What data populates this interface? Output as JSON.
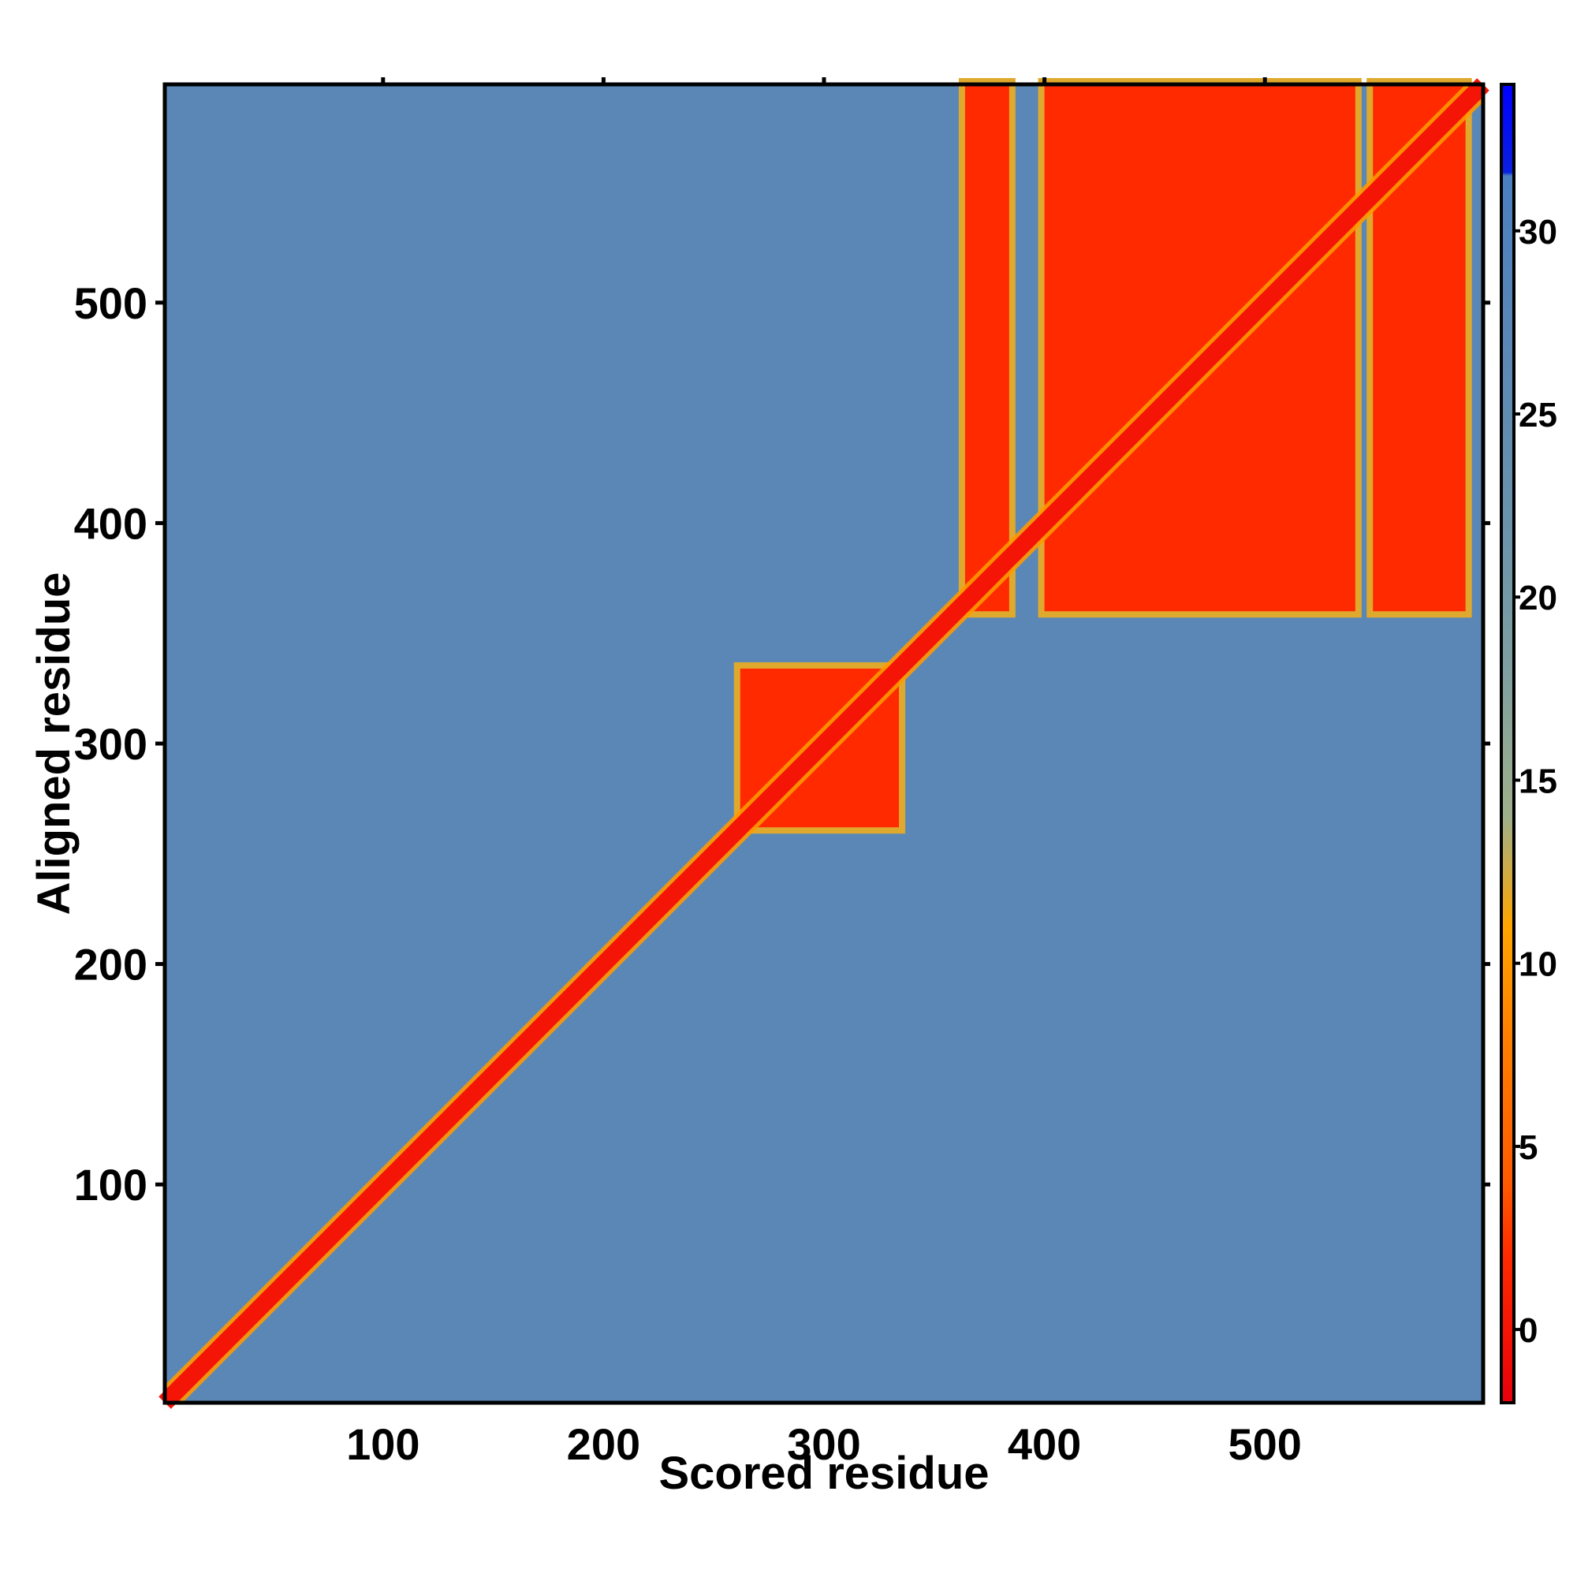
{
  "chart_data": {
    "type": "heatmap",
    "title": "",
    "xlabel": "Scored residue",
    "ylabel": "Aligned residue",
    "xlim": [
      1,
      599
    ],
    "ylim": [
      1,
      599
    ],
    "x_ticks": [
      100,
      200,
      300,
      400,
      500
    ],
    "y_ticks": [
      100,
      200,
      300,
      400,
      500
    ],
    "grid": false,
    "colorbar": {
      "range": [
        -2,
        34
      ],
      "ticks": [
        0,
        5,
        10,
        15,
        20,
        25,
        30
      ],
      "stops": [
        {
          "value": -2,
          "color": "#e8000b"
        },
        {
          "value": 2,
          "color": "#ff2a00"
        },
        {
          "value": 4,
          "color": "#ff5a00"
        },
        {
          "value": 8,
          "color": "#ff7f00"
        },
        {
          "value": 11,
          "color": "#ffa500"
        },
        {
          "value": 14,
          "color": "#9fb08a"
        },
        {
          "value": 18,
          "color": "#7f9fa0"
        },
        {
          "value": 22,
          "color": "#6a93ab"
        },
        {
          "value": 28,
          "color": "#5785b8"
        },
        {
          "value": 31.5,
          "color": "#4a7fc0"
        },
        {
          "value": 31.6,
          "color": "#0a20e0"
        },
        {
          "value": 34,
          "color": "#0000ff"
        }
      ]
    },
    "background_value": 27,
    "diagonal": {
      "value": 0,
      "halfwidth": 4
    },
    "domains": [
      {
        "x": [
          1,
          262
        ],
        "y": [
          1,
          262
        ],
        "value": null
      },
      {
        "x": [
          262,
          334
        ],
        "y": [
          262,
          334
        ],
        "value": 2
      },
      {
        "x": [
          364,
          384
        ],
        "y": [
          360,
          599
        ],
        "value": 2
      },
      {
        "x": [
          400,
          541
        ],
        "y": [
          360,
          599
        ],
        "value": 2
      },
      {
        "x": [
          549,
          591
        ],
        "y": [
          360,
          599
        ],
        "value": 2
      }
    ]
  }
}
